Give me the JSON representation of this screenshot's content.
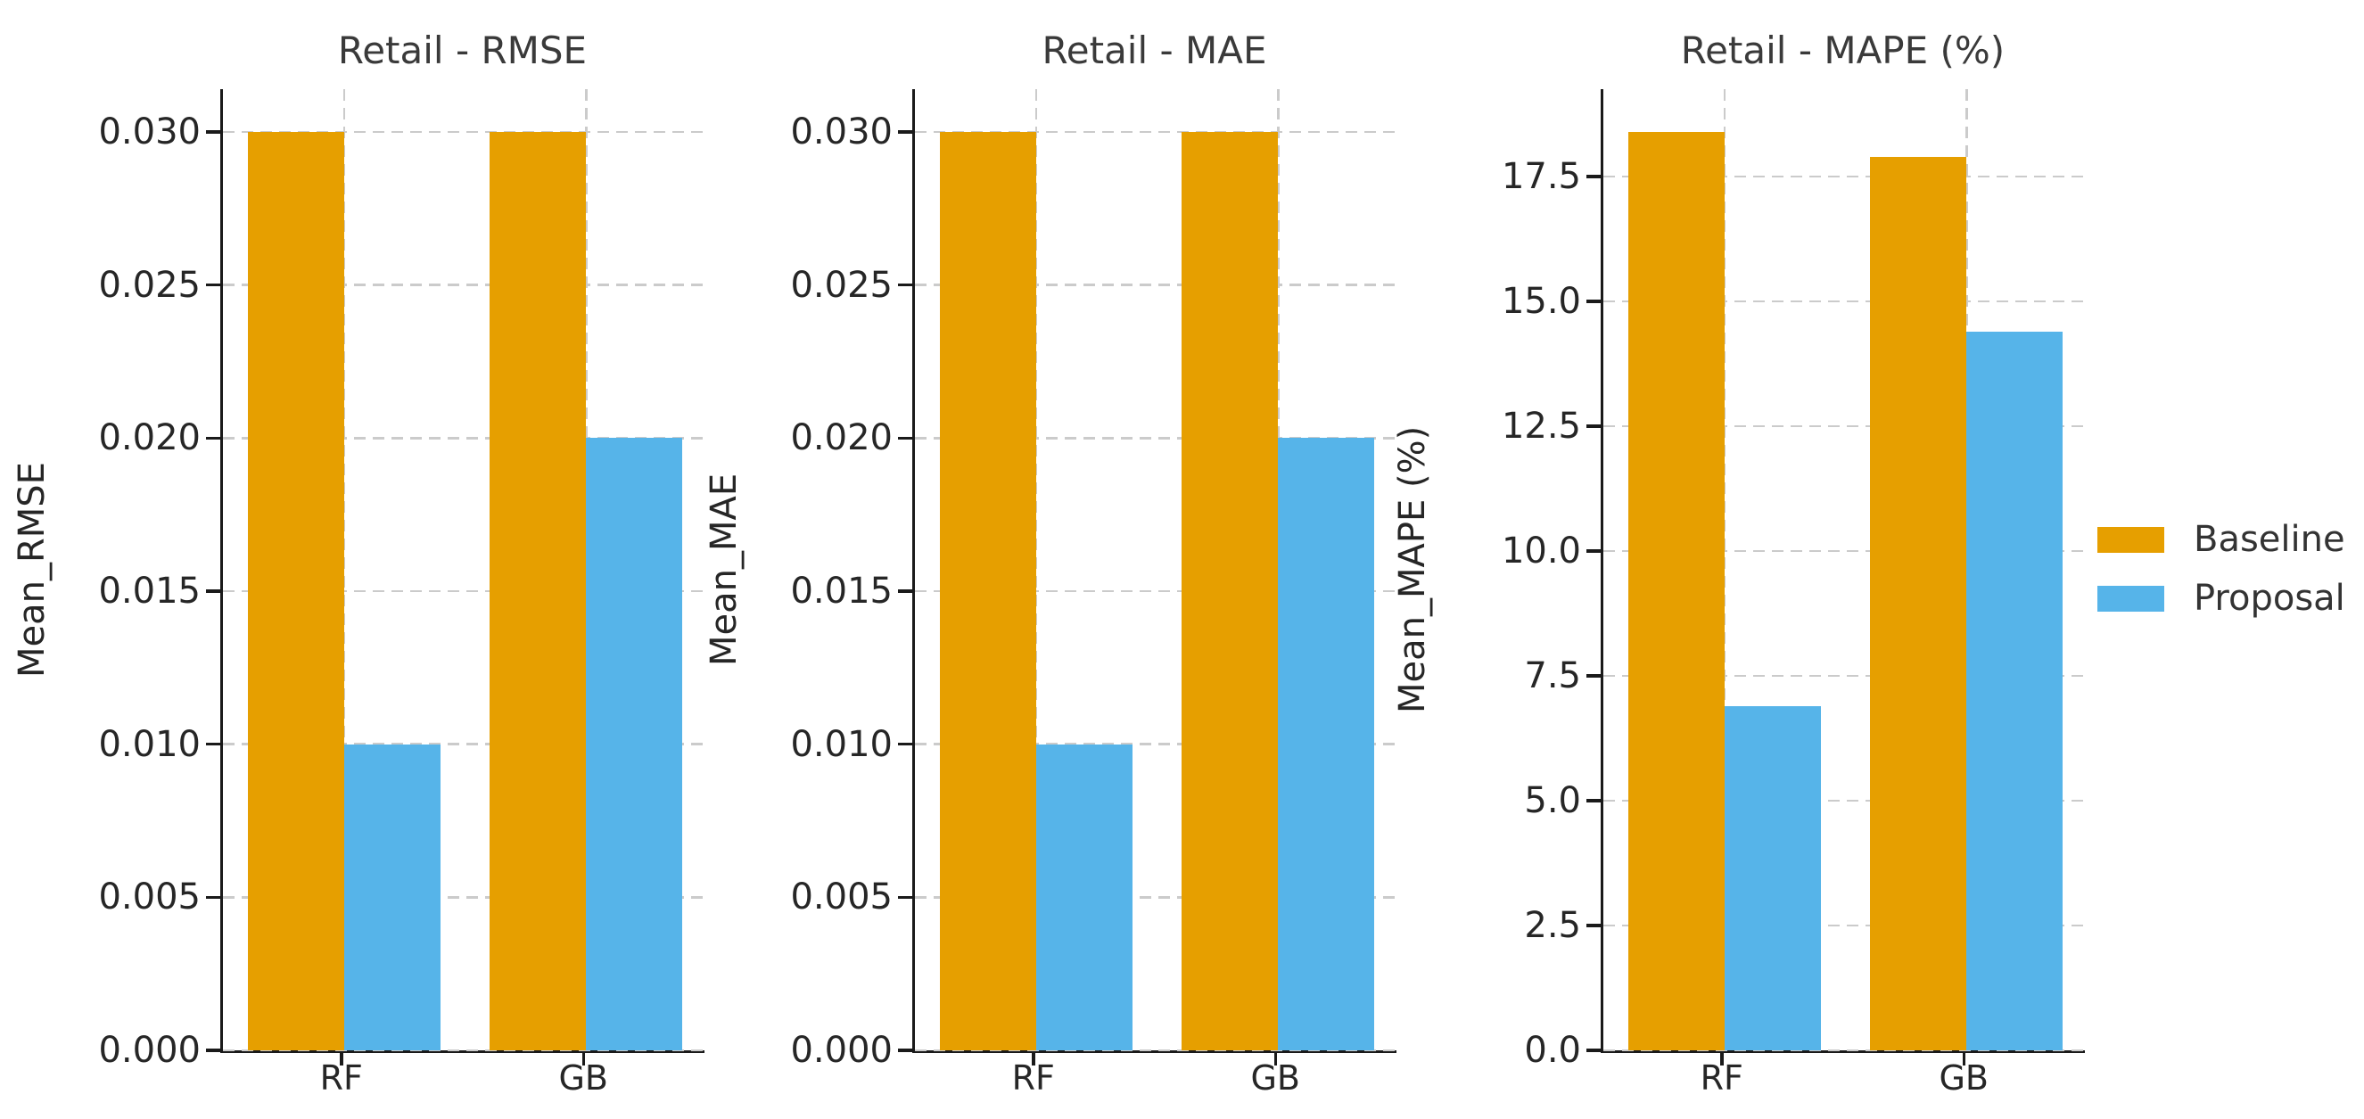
{
  "figure": {
    "background_color": "#ffffff",
    "spine_color": "#1a1a1a",
    "grid_color": "#cbcbcb",
    "text_color": "#262626",
    "title_color": "#3a3a3a"
  },
  "legend": {
    "position": "right",
    "entries": [
      {
        "label": "Baseline",
        "color": "#E69F00"
      },
      {
        "label": "Proposal",
        "color": "#56B4E9"
      }
    ]
  },
  "chart_data": [
    {
      "type": "bar",
      "title": "Retail - RMSE",
      "xlabel": "",
      "ylabel": "Mean_RMSE",
      "categories": [
        "RF",
        "GB"
      ],
      "series": [
        {
          "name": "Baseline",
          "color": "#E69F00",
          "values": [
            0.03,
            0.03
          ]
        },
        {
          "name": "Proposal",
          "color": "#56B4E9",
          "values": [
            0.01,
            0.02
          ]
        }
      ],
      "ylim": [
        0,
        0.0314
      ],
      "yticks": [
        0.0,
        0.005,
        0.01,
        0.015,
        0.02,
        0.025,
        0.03
      ],
      "ytick_labels": [
        "0.000",
        "0.005",
        "0.010",
        "0.015",
        "0.020",
        "0.025",
        "0.030"
      ],
      "grid": true,
      "grid_style": "dashed"
    },
    {
      "type": "bar",
      "title": "Retail - MAE",
      "xlabel": "",
      "ylabel": "Mean_MAE",
      "categories": [
        "RF",
        "GB"
      ],
      "series": [
        {
          "name": "Baseline",
          "color": "#E69F00",
          "values": [
            0.03,
            0.03
          ]
        },
        {
          "name": "Proposal",
          "color": "#56B4E9",
          "values": [
            0.01,
            0.02
          ]
        }
      ],
      "ylim": [
        0,
        0.0314
      ],
      "yticks": [
        0.0,
        0.005,
        0.01,
        0.015,
        0.02,
        0.025,
        0.03
      ],
      "ytick_labels": [
        "0.000",
        "0.005",
        "0.010",
        "0.015",
        "0.020",
        "0.025",
        "0.030"
      ],
      "grid": true,
      "grid_style": "dashed"
    },
    {
      "type": "bar",
      "title": "Retail - MAPE (%)",
      "xlabel": "",
      "ylabel": "Mean_MAPE (%)",
      "categories": [
        "RF",
        "GB"
      ],
      "series": [
        {
          "name": "Baseline",
          "color": "#E69F00",
          "values": [
            18.4,
            17.9
          ]
        },
        {
          "name": "Proposal",
          "color": "#56B4E9",
          "values": [
            6.9,
            14.4
          ]
        }
      ],
      "ylim": [
        0,
        19.25
      ],
      "yticks": [
        0.0,
        2.5,
        5.0,
        7.5,
        10.0,
        12.5,
        15.0,
        17.5
      ],
      "ytick_labels": [
        "0.0",
        "2.5",
        "5.0",
        "7.5",
        "10.0",
        "12.5",
        "15.0",
        "17.5"
      ],
      "grid": true,
      "grid_style": "dashed"
    }
  ]
}
